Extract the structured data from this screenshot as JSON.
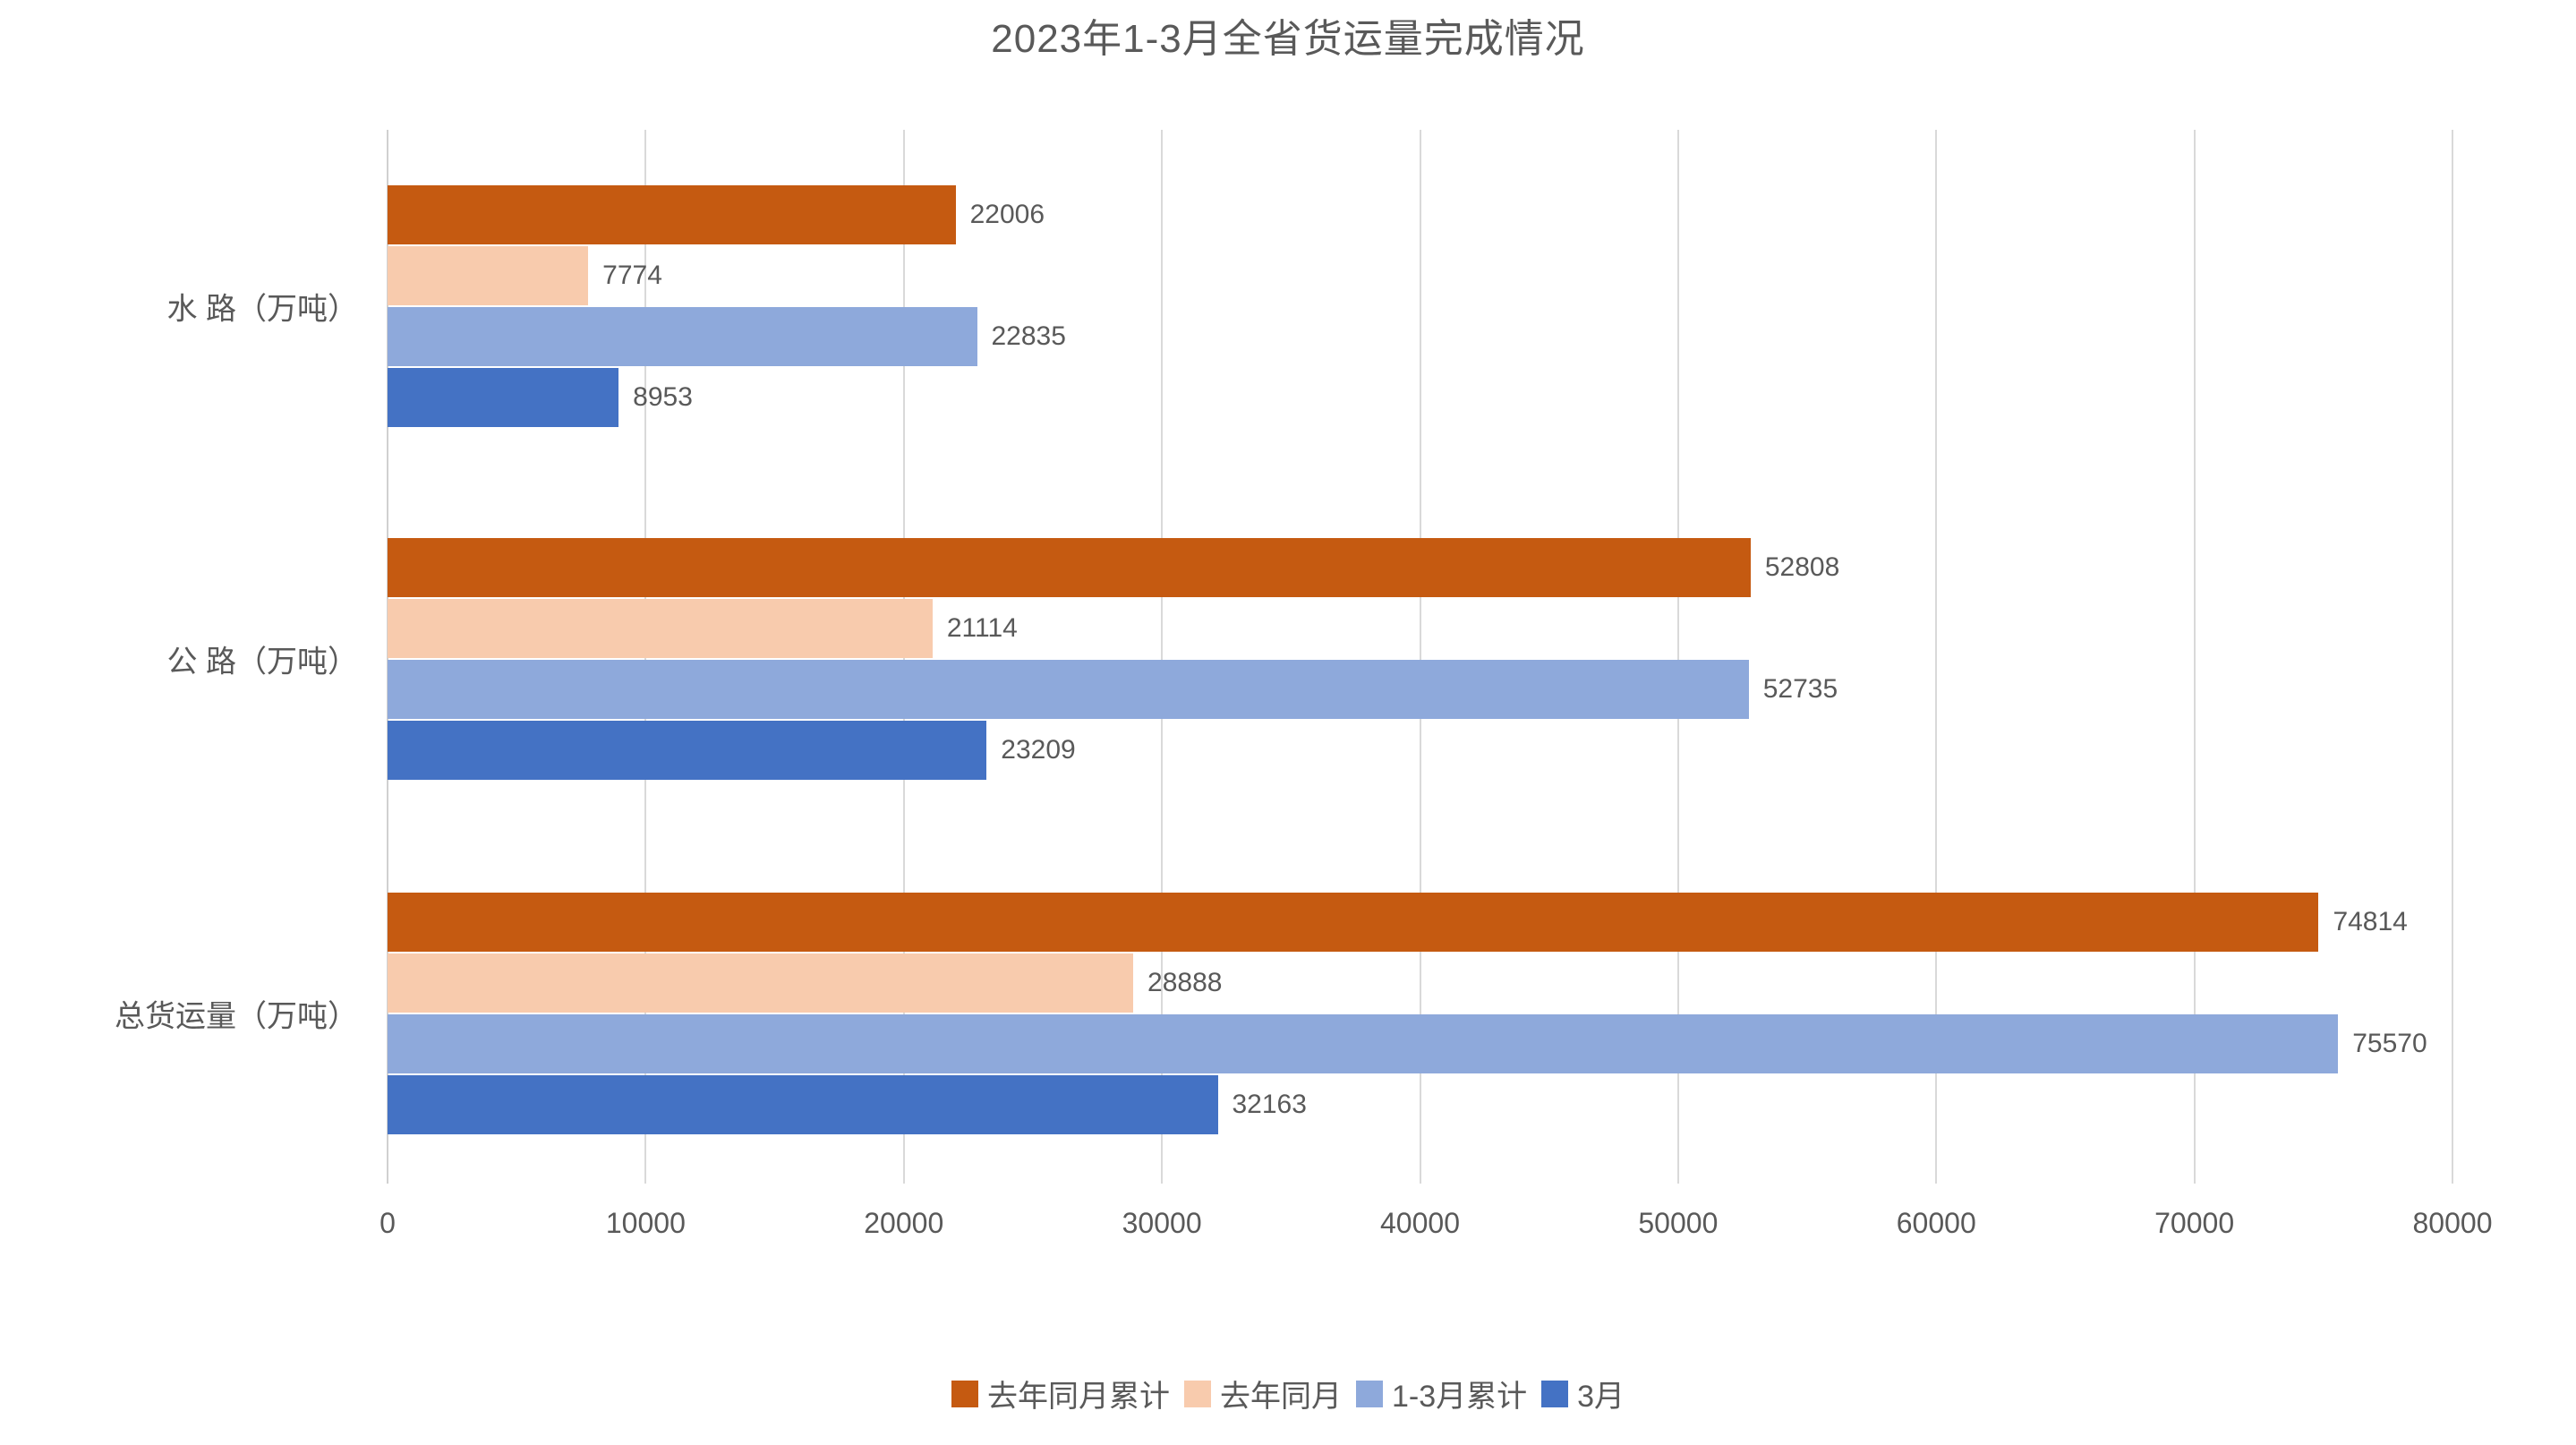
{
  "chart_data": {
    "type": "bar",
    "orientation": "horizontal",
    "title": "2023年1-3月全省货运量完成情况",
    "categories": [
      "水 路（万吨）",
      "公 路（万吨）",
      "总货运量（万吨）"
    ],
    "series": [
      {
        "name": "去年同月累计",
        "color": "#C55A11",
        "values": [
          22006,
          52808,
          74814
        ]
      },
      {
        "name": "去年同月",
        "color": "#F8CBAD",
        "values": [
          7774,
          21114,
          28888
        ]
      },
      {
        "name": "1-3月累计",
        "color": "#8EA9DB",
        "values": [
          22835,
          52735,
          75570
        ]
      },
      {
        "name": "3月",
        "color": "#4472C4",
        "values": [
          8953,
          23209,
          32163
        ]
      }
    ],
    "xlim": [
      0,
      80000
    ],
    "xticks": [
      0,
      10000,
      20000,
      30000,
      40000,
      50000,
      60000,
      70000,
      80000
    ],
    "xlabel": "",
    "ylabel": "",
    "grid": true,
    "bar_labels": true,
    "legend_position": "bottom",
    "text_color": "#595959",
    "gridline_color": "#D9D9D9"
  }
}
